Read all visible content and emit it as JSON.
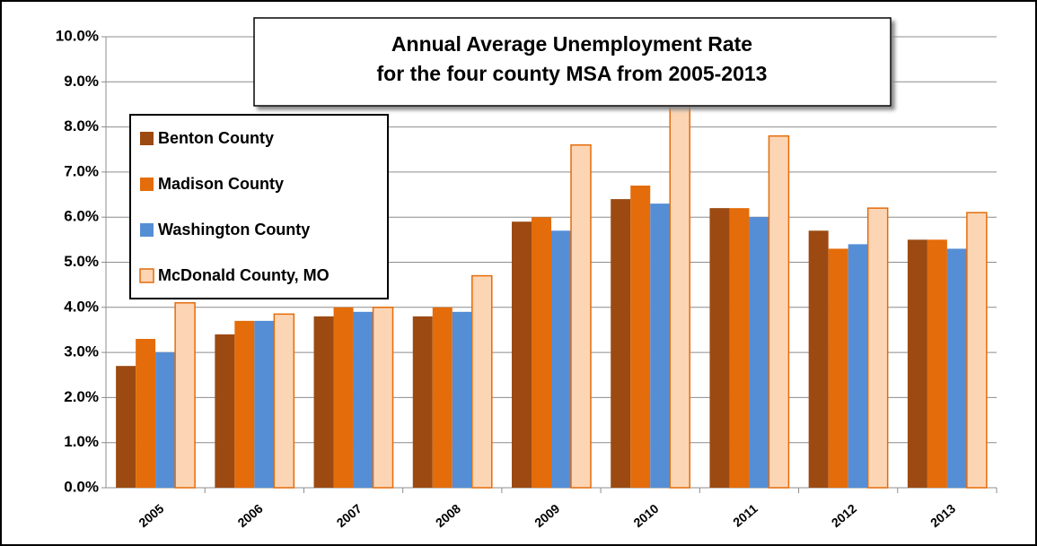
{
  "chart_data": {
    "type": "bar",
    "title": [
      "Annual Average Unemployment Rate",
      "for the four county MSA from 2005-2013"
    ],
    "categories": [
      "2005",
      "2006",
      "2007",
      "2008",
      "2009",
      "2010",
      "2011",
      "2012",
      "2013"
    ],
    "series": [
      {
        "name": "Benton County",
        "color": "#9c4a12",
        "values": [
          2.7,
          3.4,
          3.8,
          3.8,
          5.9,
          6.4,
          6.2,
          5.7,
          5.5
        ]
      },
      {
        "name": "Madison County",
        "color": "#e46c0a",
        "values": [
          3.3,
          3.7,
          4.0,
          4.0,
          6.0,
          6.7,
          6.2,
          5.3,
          5.5
        ]
      },
      {
        "name": "Washington County",
        "color": "#558ed5",
        "values": [
          3.0,
          3.7,
          3.9,
          3.9,
          5.7,
          6.3,
          6.0,
          5.4,
          5.3
        ]
      },
      {
        "name": "McDonald County, MO",
        "color": "#fcd5b5",
        "border_color": "#e46c0a",
        "values": [
          4.1,
          3.85,
          4.0,
          4.7,
          7.6,
          8.7,
          7.8,
          6.2,
          6.1
        ]
      }
    ],
    "ylim": [
      0,
      10
    ],
    "yticks": [
      {
        "value": 0,
        "label": "0.0%"
      },
      {
        "value": 1,
        "label": "1.0%"
      },
      {
        "value": 2,
        "label": "2.0%"
      },
      {
        "value": 3,
        "label": "3.0%"
      },
      {
        "value": 4,
        "label": "4.0%"
      },
      {
        "value": 5,
        "label": "5.0%"
      },
      {
        "value": 6,
        "label": "6.0%"
      },
      {
        "value": 7,
        "label": "7.0%"
      },
      {
        "value": 8,
        "label": "8.0%"
      },
      {
        "value": 9,
        "label": "9.0%"
      },
      {
        "value": 10,
        "label": "10.0%"
      }
    ],
    "grid": true,
    "legend": "upper left"
  }
}
